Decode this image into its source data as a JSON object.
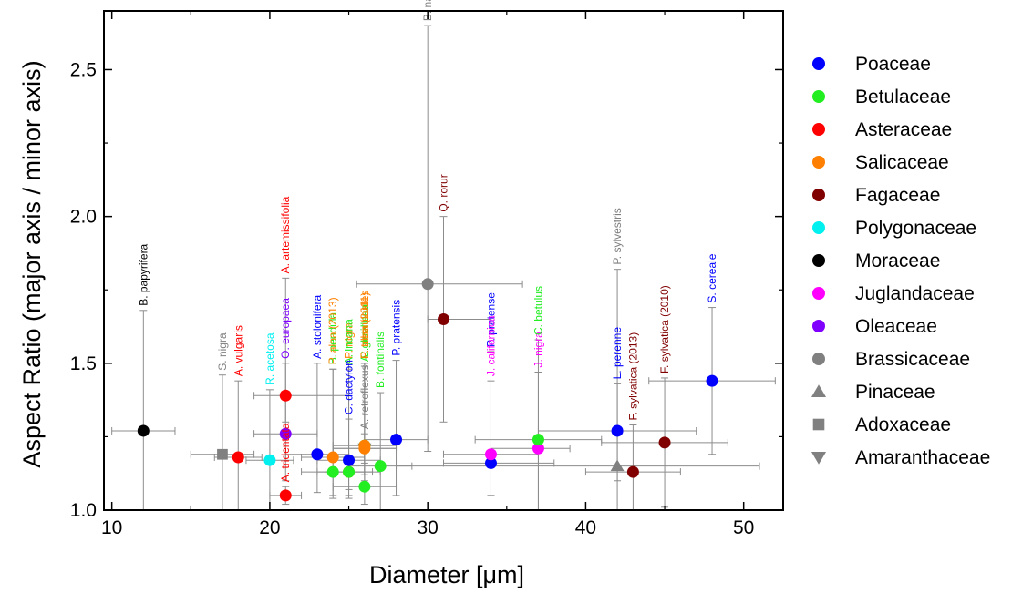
{
  "chart_data": {
    "type": "scatter",
    "xlabel": "Diameter [μm]",
    "ylabel": "Aspect Ratio (major axis / minor axis)",
    "xlim": [
      9.5,
      52.5
    ],
    "ylim": [
      1.0,
      2.7
    ],
    "x_ticks": [
      "10",
      "20",
      "30",
      "40",
      "50"
    ],
    "y_ticks": [
      "1.0",
      "1.5",
      "2.0",
      "2.5"
    ],
    "grid": false,
    "legend_position": "right",
    "legend": [
      {
        "name": "Poaceae",
        "color": "#0000ff",
        "marker": "circle"
      },
      {
        "name": "Betulaceae",
        "color": "#22ee22",
        "marker": "circle"
      },
      {
        "name": "Asteraceae",
        "color": "#ff0000",
        "marker": "circle"
      },
      {
        "name": "Salicaceae",
        "color": "#ff8000",
        "marker": "circle"
      },
      {
        "name": "Fagaceae",
        "color": "#800000",
        "marker": "circle"
      },
      {
        "name": "Polygonaceae",
        "color": "#00f0f0",
        "marker": "circle"
      },
      {
        "name": "Moraceae",
        "color": "#000000",
        "marker": "circle"
      },
      {
        "name": "Juglandaceae",
        "color": "#ff00ff",
        "marker": "circle"
      },
      {
        "name": "Oleaceae",
        "color": "#8000ff",
        "marker": "circle"
      },
      {
        "name": "Brassicaceae",
        "color": "#808080",
        "marker": "circle"
      },
      {
        "name": "Pinaceae",
        "color": "#808080",
        "marker": "triangle-up"
      },
      {
        "name": "Adoxaceae",
        "color": "#808080",
        "marker": "square"
      },
      {
        "name": "Amaranthaceae",
        "color": "#808080",
        "marker": "triangle-down"
      }
    ],
    "points": [
      {
        "label": "B. papyrifera",
        "family": "Moraceae",
        "x": 12,
        "y": 1.27,
        "xerr": [
          10,
          14
        ],
        "yerr": [
          0.86,
          1.68
        ]
      },
      {
        "label": "S. nigra",
        "family": "Adoxaceae",
        "x": 17,
        "y": 1.19,
        "xerr": [
          15,
          19
        ],
        "yerr": [
          0.93,
          1.46
        ]
      },
      {
        "label": "A. vulgaris",
        "family": "Asteraceae",
        "x": 18,
        "y": 1.18,
        "xerr": [
          16.5,
          19.5
        ],
        "yerr": [
          0.93,
          1.44
        ]
      },
      {
        "label": "R. acetosa",
        "family": "Polygonaceae",
        "x": 20,
        "y": 1.17,
        "xerr": [
          18.5,
          21.5
        ],
        "yerr": [
          0.93,
          1.41
        ]
      },
      {
        "label": "A. artemissifolia",
        "family": "Asteraceae",
        "x": 21,
        "y": 1.39,
        "xerr": [
          19,
          25
        ],
        "yerr": [
          1.3,
          1.79
        ]
      },
      {
        "label": "O. europaea",
        "family": "Oleaceae",
        "x": 21,
        "y": 1.26,
        "xerr": [
          19,
          23
        ],
        "yerr": [
          1.1,
          1.5
        ]
      },
      {
        "label": "A. tridentata",
        "family": "Asteraceae",
        "x": 21,
        "y": 1.05,
        "xerr": [
          20,
          22
        ],
        "yerr": [
          1.02,
          1.08
        ]
      },
      {
        "label": "A. stolonifera",
        "family": "Poaceae",
        "x": 23,
        "y": 1.19,
        "xerr": [
          21,
          25
        ],
        "yerr": [
          1.06,
          1.5
        ]
      },
      {
        "label": "B. pendula",
        "family": "Betulaceae",
        "x": 24,
        "y": 1.13,
        "xerr": [
          22,
          26
        ],
        "yerr": [
          1.04,
          1.48
        ]
      },
      {
        "label": "P. alba (2013)",
        "family": "Salicaceae",
        "x": 24,
        "y": 1.18,
        "xerr": [
          22,
          26
        ],
        "yerr": [
          1.05,
          1.48
        ]
      },
      {
        "label": "P. nigra",
        "family": "Salicaceae",
        "x": 25,
        "y": 1.13,
        "xerr": [
          23,
          27
        ],
        "yerr": [
          1.04,
          1.5
        ]
      },
      {
        "label": "A. incana",
        "family": "Betulaceae",
        "x": 25,
        "y": 1.13,
        "xerr": [
          23.5,
          26.5
        ],
        "yerr": [
          1.05,
          1.48
        ]
      },
      {
        "label": "C. dactylon",
        "family": "Poaceae",
        "x": 25,
        "y": 1.17,
        "xerr": [
          23,
          27
        ],
        "yerr": [
          1.07,
          1.31
        ]
      },
      {
        "label": "A. retroflexus",
        "family": "Amaranthaceae",
        "x": 26,
        "y": 1.21,
        "xerr": [
          24,
          28
        ],
        "yerr": [
          1.16,
          1.26
        ]
      },
      {
        "label": "A. glutinosa",
        "family": "Betulaceae",
        "x": 26,
        "y": 1.08,
        "xerr": [
          24,
          28
        ],
        "yerr": [
          1.02,
          1.49
        ]
      },
      {
        "label": "C. avellana",
        "family": "Betulaceae",
        "x": 26,
        "y": 1.22,
        "xerr": [
          24,
          28
        ],
        "yerr": [
          1.1,
          1.5
        ]
      },
      {
        "label": "P. alba (2011)",
        "family": "Salicaceae",
        "x": 26,
        "y": 1.21,
        "xerr": [
          24,
          28
        ],
        "yerr": [
          1.12,
          1.5
        ]
      },
      {
        "label": "P. tremuloides",
        "family": "Salicaceae",
        "x": 26,
        "y": 1.22,
        "xerr": [
          24,
          28
        ],
        "yerr": [
          1.12,
          1.5
        ]
      },
      {
        "label": "B. fontinalis",
        "family": "Betulaceae",
        "x": 27,
        "y": 1.15,
        "xerr": [
          25,
          29
        ],
        "yerr": [
          0.95,
          1.4
        ]
      },
      {
        "label": "P. pratensis",
        "family": "Poaceae",
        "x": 28,
        "y": 1.24,
        "xerr": [
          26,
          30
        ],
        "yerr": [
          1.05,
          1.51
        ]
      },
      {
        "label": "B. napus",
        "family": "Brassicaceae",
        "x": 30,
        "y": 1.77,
        "xerr": [
          25.5,
          36
        ],
        "yerr": [
          1.2,
          2.65
        ]
      },
      {
        "label": "Q. rorur",
        "family": "Fagaceae",
        "x": 31,
        "y": 1.65,
        "xerr": [
          30,
          34
        ],
        "yerr": [
          1.3,
          2.0
        ]
      },
      {
        "label": "P. pratense",
        "family": "Poaceae",
        "x": 34,
        "y": 1.16,
        "xerr": [
          31,
          38
        ],
        "yerr": [
          1.05,
          1.54
        ]
      },
      {
        "label": "J. californica",
        "family": "Juglandaceae",
        "x": 34,
        "y": 1.19,
        "xerr": [
          31,
          37
        ],
        "yerr": [
          1.05,
          1.44
        ]
      },
      {
        "label": "J. nigra",
        "family": "Juglandaceae",
        "x": 37,
        "y": 1.21,
        "xerr": [
          34,
          39
        ],
        "yerr": [
          0.96,
          1.47
        ]
      },
      {
        "label": "C. betulus",
        "family": "Betulaceae",
        "x": 37,
        "y": 1.24,
        "xerr": [
          33,
          41
        ],
        "yerr": [
          1.0,
          1.58
        ]
      },
      {
        "label": "L. perenne",
        "family": "Poaceae",
        "x": 42,
        "y": 1.27,
        "xerr": [
          37,
          47
        ],
        "yerr": [
          1.1,
          1.43
        ]
      },
      {
        "label": "P. sylvestris",
        "family": "Pinaceae",
        "x": 42,
        "y": 1.15,
        "xerr": [
          28,
          51
        ],
        "yerr": [
          1.0,
          1.82
        ]
      },
      {
        "label": "F. sylvatica (2013)",
        "family": "Fagaceae",
        "x": 43,
        "y": 1.13,
        "xerr": [
          40,
          46
        ],
        "yerr": [
          0.98,
          1.29
        ]
      },
      {
        "label": "F. sylvatica (2010)",
        "family": "Fagaceae",
        "x": 45,
        "y": 1.23,
        "xerr": [
          41,
          49
        ],
        "yerr": [
          1.01,
          1.45
        ]
      },
      {
        "label": "S. cereale",
        "family": "Poaceae",
        "x": 48,
        "y": 1.44,
        "xerr": [
          44,
          52
        ],
        "yerr": [
          1.19,
          1.69
        ]
      }
    ]
  }
}
